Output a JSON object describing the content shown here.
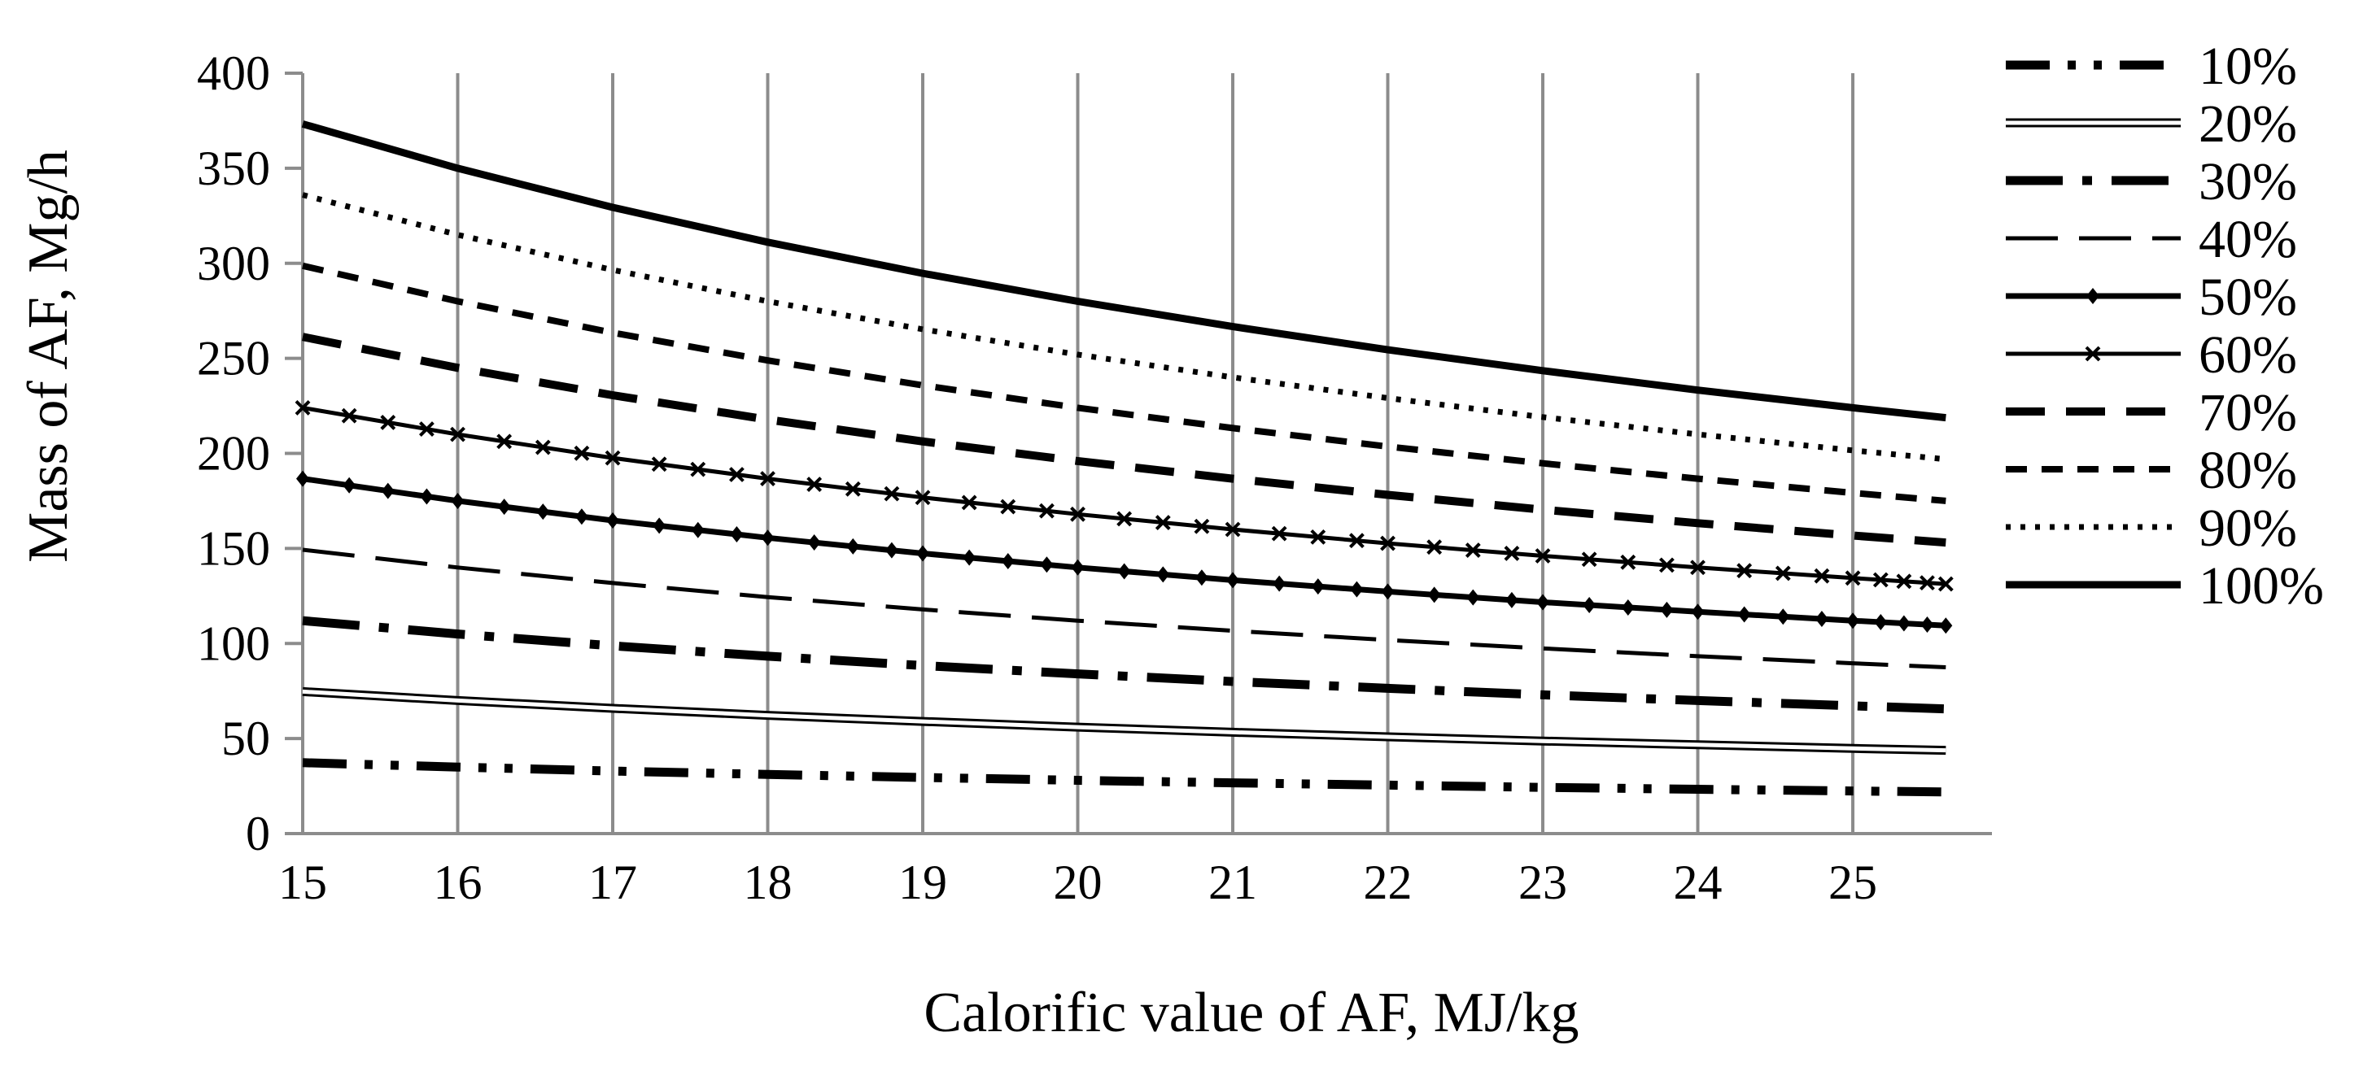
{
  "chart_data": {
    "type": "line",
    "title": "",
    "xlabel": "Calorific value of AF, MJ/kg",
    "ylabel": "Mass of AF, Mg/h",
    "xlim": [
      15,
      25.6
    ],
    "ylim": [
      0,
      400
    ],
    "x_ticks": [
      "15",
      "16",
      "17",
      "18",
      "19",
      "20",
      "21",
      "22",
      "23",
      "24",
      "25"
    ],
    "y_ticks": [
      "0",
      "50",
      "100",
      "150",
      "200",
      "250",
      "300",
      "350",
      "400"
    ],
    "grid": "vertical",
    "legend_position": "right",
    "x": [
      15,
      16,
      17,
      18,
      19,
      20,
      21,
      22,
      23,
      24,
      25,
      25.6
    ],
    "series": [
      {
        "name": "10%",
        "style": "dash-dot-dot",
        "values": [
          37.3,
          35.0,
          32.9,
          31.1,
          29.5,
          28.0,
          26.7,
          25.5,
          24.3,
          23.3,
          22.4,
          21.9
        ]
      },
      {
        "name": "20%",
        "style": "double",
        "values": [
          74.7,
          70.0,
          65.9,
          62.2,
          59.0,
          56.0,
          53.3,
          50.9,
          48.7,
          46.7,
          44.8,
          43.8
        ]
      },
      {
        "name": "30%",
        "style": "dash-dot",
        "values": [
          112.0,
          105.0,
          98.8,
          93.3,
          88.4,
          84.0,
          80.0,
          76.4,
          73.0,
          70.0,
          67.2,
          65.6
        ]
      },
      {
        "name": "40%",
        "style": "long-dash",
        "values": [
          149.3,
          140.0,
          131.8,
          124.4,
          117.9,
          112.0,
          106.7,
          101.8,
          97.4,
          93.3,
          89.6,
          87.5
        ]
      },
      {
        "name": "50%",
        "style": "diamond",
        "values": [
          186.7,
          175.0,
          164.7,
          155.6,
          147.4,
          140.0,
          133.3,
          127.3,
          121.7,
          116.7,
          112.0,
          109.4
        ]
      },
      {
        "name": "60%",
        "style": "cross",
        "values": [
          224.0,
          210.0,
          197.6,
          186.7,
          176.8,
          168.0,
          160.0,
          152.7,
          146.1,
          140.0,
          134.4,
          131.3
        ]
      },
      {
        "name": "70%",
        "style": "heavy-dash",
        "values": [
          261.3,
          245.0,
          230.6,
          217.8,
          206.3,
          196.0,
          186.7,
          178.2,
          170.4,
          163.3,
          156.8,
          153.1
        ]
      },
      {
        "name": "80%",
        "style": "short-dash",
        "values": [
          298.7,
          280.0,
          263.5,
          248.9,
          235.8,
          224.0,
          213.3,
          203.6,
          194.8,
          186.7,
          179.2,
          175.0
        ]
      },
      {
        "name": "90%",
        "style": "dotted",
        "values": [
          336.0,
          315.0,
          296.5,
          280.0,
          265.3,
          252.0,
          240.0,
          229.1,
          219.1,
          210.0,
          201.6,
          196.9
        ]
      },
      {
        "name": "100%",
        "style": "solid",
        "values": [
          373.3,
          350.0,
          329.4,
          311.1,
          294.7,
          280.0,
          266.7,
          254.5,
          243.5,
          233.3,
          224.0,
          218.8
        ]
      }
    ]
  }
}
